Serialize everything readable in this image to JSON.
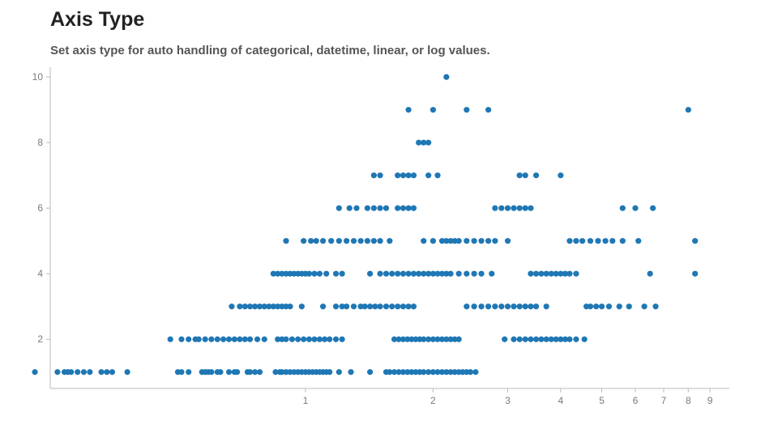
{
  "page": {
    "title": "Axis Type",
    "subtitle": "Set axis type for auto handling of categorical, datetime, linear, or log values."
  },
  "colors": {
    "point": "#1f77b4",
    "axis": "#bbbbbb",
    "tick_text": "#7a7a7a"
  },
  "chart_data": {
    "type": "scatter",
    "title": "",
    "xlabel": "",
    "ylabel": "",
    "xscale": "log",
    "xlim": [
      0.25,
      10
    ],
    "ylim": [
      0.5,
      10.3
    ],
    "grid": false,
    "x_ticks": [
      {
        "value": 1,
        "label": "1"
      },
      {
        "value": 2,
        "label": "2"
      },
      {
        "value": 3,
        "label": "3"
      },
      {
        "value": 4,
        "label": "4"
      },
      {
        "value": 5,
        "label": "5"
      },
      {
        "value": 6,
        "label": "6"
      },
      {
        "value": 7,
        "label": "7"
      },
      {
        "value": 8,
        "label": "8"
      },
      {
        "value": 9,
        "label": "9"
      }
    ],
    "y_ticks": [
      {
        "value": 2,
        "label": "2"
      },
      {
        "value": 4,
        "label": "4"
      },
      {
        "value": 6,
        "label": "6"
      },
      {
        "value": 8,
        "label": "8"
      },
      {
        "value": 10,
        "label": "10"
      }
    ],
    "points": [
      [
        0.23,
        1
      ],
      [
        0.26,
        1
      ],
      [
        0.27,
        1
      ],
      [
        0.275,
        1
      ],
      [
        0.28,
        1
      ],
      [
        0.29,
        1
      ],
      [
        0.3,
        1
      ],
      [
        0.31,
        1
      ],
      [
        0.33,
        1
      ],
      [
        0.34,
        1
      ],
      [
        0.35,
        1
      ],
      [
        0.38,
        1
      ],
      [
        0.5,
        1
      ],
      [
        0.51,
        1
      ],
      [
        0.53,
        1
      ],
      [
        0.57,
        1
      ],
      [
        0.58,
        1
      ],
      [
        0.59,
        1
      ],
      [
        0.6,
        1
      ],
      [
        0.62,
        1
      ],
      [
        0.63,
        1
      ],
      [
        0.66,
        1
      ],
      [
        0.68,
        1
      ],
      [
        0.69,
        1
      ],
      [
        0.73,
        1
      ],
      [
        0.74,
        1
      ],
      [
        0.76,
        1
      ],
      [
        0.78,
        1
      ],
      [
        0.85,
        1
      ],
      [
        0.87,
        1
      ],
      [
        0.88,
        1
      ],
      [
        0.9,
        1
      ],
      [
        0.92,
        1
      ],
      [
        0.94,
        1
      ],
      [
        0.96,
        1
      ],
      [
        0.98,
        1
      ],
      [
        1.0,
        1
      ],
      [
        1.02,
        1
      ],
      [
        1.04,
        1
      ],
      [
        1.06,
        1
      ],
      [
        1.08,
        1
      ],
      [
        1.1,
        1
      ],
      [
        1.12,
        1
      ],
      [
        1.14,
        1
      ],
      [
        1.2,
        1
      ],
      [
        1.28,
        1
      ],
      [
        1.42,
        1
      ],
      [
        1.55,
        1
      ],
      [
        1.58,
        1
      ],
      [
        1.62,
        1
      ],
      [
        1.66,
        1
      ],
      [
        1.7,
        1
      ],
      [
        1.74,
        1
      ],
      [
        1.78,
        1
      ],
      [
        1.82,
        1
      ],
      [
        1.86,
        1
      ],
      [
        1.9,
        1
      ],
      [
        1.95,
        1
      ],
      [
        2.0,
        1
      ],
      [
        2.05,
        1
      ],
      [
        2.1,
        1
      ],
      [
        2.15,
        1
      ],
      [
        2.2,
        1
      ],
      [
        2.25,
        1
      ],
      [
        2.3,
        1
      ],
      [
        2.35,
        1
      ],
      [
        2.4,
        1
      ],
      [
        2.45,
        1
      ],
      [
        2.52,
        1
      ],
      [
        0.48,
        2
      ],
      [
        0.51,
        2
      ],
      [
        0.53,
        2
      ],
      [
        0.55,
        2
      ],
      [
        0.56,
        2
      ],
      [
        0.58,
        2
      ],
      [
        0.6,
        2
      ],
      [
        0.62,
        2
      ],
      [
        0.64,
        2
      ],
      [
        0.66,
        2
      ],
      [
        0.68,
        2
      ],
      [
        0.7,
        2
      ],
      [
        0.72,
        2
      ],
      [
        0.74,
        2
      ],
      [
        0.77,
        2
      ],
      [
        0.8,
        2
      ],
      [
        0.86,
        2
      ],
      [
        0.88,
        2
      ],
      [
        0.9,
        2
      ],
      [
        0.93,
        2
      ],
      [
        0.96,
        2
      ],
      [
        0.99,
        2
      ],
      [
        1.02,
        2
      ],
      [
        1.05,
        2
      ],
      [
        1.08,
        2
      ],
      [
        1.11,
        2
      ],
      [
        1.14,
        2
      ],
      [
        1.18,
        2
      ],
      [
        1.22,
        2
      ],
      [
        1.62,
        2
      ],
      [
        1.66,
        2
      ],
      [
        1.7,
        2
      ],
      [
        1.74,
        2
      ],
      [
        1.78,
        2
      ],
      [
        1.82,
        2
      ],
      [
        1.86,
        2
      ],
      [
        1.9,
        2
      ],
      [
        1.95,
        2
      ],
      [
        2.0,
        2
      ],
      [
        2.05,
        2
      ],
      [
        2.1,
        2
      ],
      [
        2.15,
        2
      ],
      [
        2.2,
        2
      ],
      [
        2.25,
        2
      ],
      [
        2.3,
        2
      ],
      [
        2.95,
        2
      ],
      [
        3.1,
        2
      ],
      [
        3.2,
        2
      ],
      [
        3.3,
        2
      ],
      [
        3.4,
        2
      ],
      [
        3.5,
        2
      ],
      [
        3.6,
        2
      ],
      [
        3.7,
        2
      ],
      [
        3.8,
        2
      ],
      [
        3.9,
        2
      ],
      [
        4.0,
        2
      ],
      [
        4.1,
        2
      ],
      [
        4.2,
        2
      ],
      [
        4.35,
        2
      ],
      [
        4.55,
        2
      ],
      [
        0.67,
        3
      ],
      [
        0.7,
        3
      ],
      [
        0.72,
        3
      ],
      [
        0.74,
        3
      ],
      [
        0.76,
        3
      ],
      [
        0.78,
        3
      ],
      [
        0.8,
        3
      ],
      [
        0.82,
        3
      ],
      [
        0.84,
        3
      ],
      [
        0.86,
        3
      ],
      [
        0.88,
        3
      ],
      [
        0.9,
        3
      ],
      [
        0.92,
        3
      ],
      [
        0.98,
        3
      ],
      [
        1.1,
        3
      ],
      [
        1.18,
        3
      ],
      [
        1.22,
        3
      ],
      [
        1.25,
        3
      ],
      [
        1.3,
        3
      ],
      [
        1.35,
        3
      ],
      [
        1.38,
        3
      ],
      [
        1.42,
        3
      ],
      [
        1.46,
        3
      ],
      [
        1.5,
        3
      ],
      [
        1.55,
        3
      ],
      [
        1.6,
        3
      ],
      [
        1.65,
        3
      ],
      [
        1.7,
        3
      ],
      [
        1.75,
        3
      ],
      [
        1.8,
        3
      ],
      [
        2.4,
        3
      ],
      [
        2.5,
        3
      ],
      [
        2.6,
        3
      ],
      [
        2.7,
        3
      ],
      [
        2.8,
        3
      ],
      [
        2.9,
        3
      ],
      [
        3.0,
        3
      ],
      [
        3.1,
        3
      ],
      [
        3.2,
        3
      ],
      [
        3.3,
        3
      ],
      [
        3.4,
        3
      ],
      [
        3.5,
        3
      ],
      [
        3.7,
        3
      ],
      [
        4.6,
        3
      ],
      [
        4.7,
        3
      ],
      [
        4.85,
        3
      ],
      [
        5.0,
        3
      ],
      [
        5.2,
        3
      ],
      [
        5.5,
        3
      ],
      [
        5.8,
        3
      ],
      [
        6.3,
        3
      ],
      [
        6.7,
        3
      ],
      [
        0.84,
        4
      ],
      [
        0.86,
        4
      ],
      [
        0.88,
        4
      ],
      [
        0.9,
        4
      ],
      [
        0.92,
        4
      ],
      [
        0.94,
        4
      ],
      [
        0.96,
        4
      ],
      [
        0.98,
        4
      ],
      [
        1.0,
        4
      ],
      [
        1.02,
        4
      ],
      [
        1.05,
        4
      ],
      [
        1.08,
        4
      ],
      [
        1.12,
        4
      ],
      [
        1.18,
        4
      ],
      [
        1.22,
        4
      ],
      [
        1.42,
        4
      ],
      [
        1.5,
        4
      ],
      [
        1.55,
        4
      ],
      [
        1.6,
        4
      ],
      [
        1.65,
        4
      ],
      [
        1.7,
        4
      ],
      [
        1.75,
        4
      ],
      [
        1.8,
        4
      ],
      [
        1.85,
        4
      ],
      [
        1.9,
        4
      ],
      [
        1.95,
        4
      ],
      [
        2.0,
        4
      ],
      [
        2.05,
        4
      ],
      [
        2.1,
        4
      ],
      [
        2.15,
        4
      ],
      [
        2.2,
        4
      ],
      [
        2.3,
        4
      ],
      [
        2.4,
        4
      ],
      [
        2.5,
        4
      ],
      [
        2.6,
        4
      ],
      [
        2.75,
        4
      ],
      [
        3.4,
        4
      ],
      [
        3.5,
        4
      ],
      [
        3.6,
        4
      ],
      [
        3.7,
        4
      ],
      [
        3.8,
        4
      ],
      [
        3.9,
        4
      ],
      [
        4.0,
        4
      ],
      [
        4.1,
        4
      ],
      [
        4.2,
        4
      ],
      [
        4.35,
        4
      ],
      [
        6.5,
        4
      ],
      [
        8.3,
        4
      ],
      [
        0.9,
        5
      ],
      [
        0.99,
        5
      ],
      [
        1.03,
        5
      ],
      [
        1.06,
        5
      ],
      [
        1.1,
        5
      ],
      [
        1.15,
        5
      ],
      [
        1.2,
        5
      ],
      [
        1.25,
        5
      ],
      [
        1.3,
        5
      ],
      [
        1.35,
        5
      ],
      [
        1.4,
        5
      ],
      [
        1.45,
        5
      ],
      [
        1.5,
        5
      ],
      [
        1.58,
        5
      ],
      [
        1.9,
        5
      ],
      [
        2.0,
        5
      ],
      [
        2.1,
        5
      ],
      [
        2.15,
        5
      ],
      [
        2.2,
        5
      ],
      [
        2.25,
        5
      ],
      [
        2.3,
        5
      ],
      [
        2.4,
        5
      ],
      [
        2.5,
        5
      ],
      [
        2.6,
        5
      ],
      [
        2.7,
        5
      ],
      [
        2.8,
        5
      ],
      [
        3.0,
        5
      ],
      [
        4.2,
        5
      ],
      [
        4.35,
        5
      ],
      [
        4.5,
        5
      ],
      [
        4.7,
        5
      ],
      [
        4.9,
        5
      ],
      [
        5.1,
        5
      ],
      [
        5.3,
        5
      ],
      [
        5.6,
        5
      ],
      [
        6.1,
        5
      ],
      [
        8.3,
        5
      ],
      [
        1.2,
        6
      ],
      [
        1.27,
        6
      ],
      [
        1.32,
        6
      ],
      [
        1.4,
        6
      ],
      [
        1.45,
        6
      ],
      [
        1.5,
        6
      ],
      [
        1.55,
        6
      ],
      [
        1.65,
        6
      ],
      [
        1.7,
        6
      ],
      [
        1.75,
        6
      ],
      [
        1.8,
        6
      ],
      [
        2.8,
        6
      ],
      [
        2.9,
        6
      ],
      [
        3.0,
        6
      ],
      [
        3.1,
        6
      ],
      [
        3.2,
        6
      ],
      [
        3.3,
        6
      ],
      [
        3.4,
        6
      ],
      [
        5.6,
        6
      ],
      [
        6.0,
        6
      ],
      [
        6.6,
        6
      ],
      [
        1.45,
        7
      ],
      [
        1.5,
        7
      ],
      [
        1.65,
        7
      ],
      [
        1.7,
        7
      ],
      [
        1.75,
        7
      ],
      [
        1.8,
        7
      ],
      [
        1.95,
        7
      ],
      [
        2.05,
        7
      ],
      [
        3.2,
        7
      ],
      [
        3.3,
        7
      ],
      [
        3.5,
        7
      ],
      [
        4.0,
        7
      ],
      [
        1.85,
        8
      ],
      [
        1.9,
        8
      ],
      [
        1.95,
        8
      ],
      [
        1.75,
        9
      ],
      [
        2.0,
        9
      ],
      [
        2.4,
        9
      ],
      [
        2.7,
        9
      ],
      [
        8.0,
        9
      ],
      [
        2.15,
        10
      ]
    ]
  }
}
